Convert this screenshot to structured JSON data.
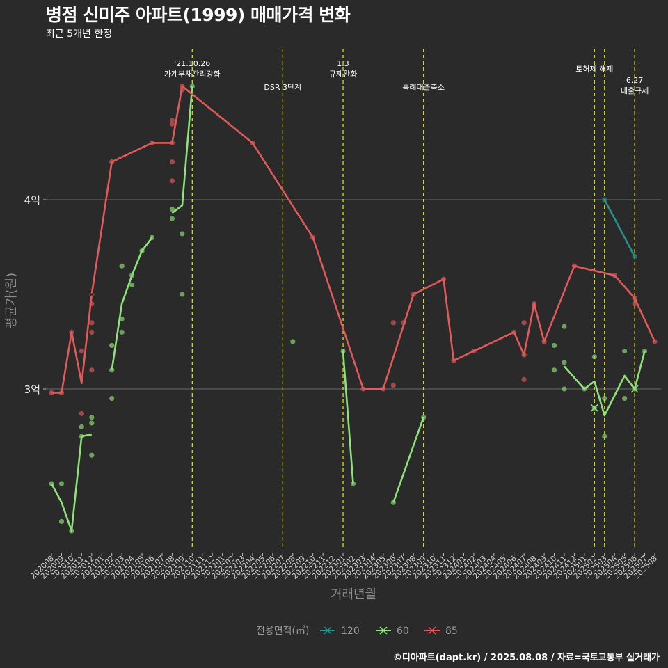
{
  "colors": {
    "background": "#2b2a2b",
    "grid": "#6a6a6a",
    "vline": "#d8e000",
    "s120": "#2a8f8a",
    "s60": "#8fe27a",
    "s85": "#e05a5a"
  },
  "chart_data": {
    "type": "line",
    "title": "병점 신미주 아파트(1999) 매매가격 변화",
    "subtitle": "최근 5개년 한정",
    "caption": "©디아파트(dapt.kr) / 2025.08.08 / 자료=국토교통부 실거래가",
    "xlabel": "거래년월",
    "ylabel": "평균가(원)",
    "ylim": [
      2.2,
      4.8
    ],
    "yticks": [
      {
        "value": 3,
        "label": "3억"
      },
      {
        "value": 4,
        "label": "4억"
      }
    ],
    "months": [
      "202008",
      "202009",
      "202010",
      "202011",
      "202012",
      "202101",
      "202102",
      "202103",
      "202104",
      "202105",
      "202106",
      "202107",
      "202108",
      "202109",
      "202110",
      "202111",
      "202112",
      "202201",
      "202202",
      "202203",
      "202204",
      "202205",
      "202206",
      "202207",
      "202208",
      "202209",
      "202210",
      "202211",
      "202212",
      "202301",
      "202302",
      "202303",
      "202304",
      "202305",
      "202306",
      "202307",
      "202308",
      "202309",
      "202310",
      "202311",
      "202312",
      "202401",
      "202402",
      "202403",
      "202404",
      "202405",
      "202406",
      "202407",
      "202408",
      "202409",
      "202410",
      "202411",
      "202412",
      "202501",
      "202502",
      "202503",
      "202504",
      "202505",
      "202506",
      "202507",
      "202508"
    ],
    "annotations": [
      {
        "month": "202110",
        "lines": [
          "'21.10.26",
          "가계부채관리강화"
        ],
        "row": "high"
      },
      {
        "month": "202207",
        "lines": [
          "DSR 3단계"
        ],
        "row": "low"
      },
      {
        "month": "202301",
        "lines": [
          "1.3",
          "규제완화"
        ],
        "row": "high"
      },
      {
        "month": "202309",
        "lines": [
          "특례대출축소"
        ],
        "row": "low"
      },
      {
        "month": "202502",
        "lines": [
          "토허제 해제"
        ],
        "row": "mid"
      },
      {
        "month": "202503",
        "lines": [],
        "row": "none"
      },
      {
        "month": "202506",
        "lines": [
          "6.27",
          "대출규제"
        ],
        "row": "low2"
      }
    ],
    "legend": {
      "title": "전용면적(㎡)",
      "entries": [
        "120",
        "60",
        "85"
      ]
    },
    "series": [
      {
        "name": "120",
        "color": "#2a8f8a",
        "line": [
          [
            "202503",
            4.0
          ],
          [
            "202506",
            3.7
          ]
        ],
        "points": [
          [
            "202503",
            4.0
          ],
          [
            "202506",
            3.7
          ]
        ]
      },
      {
        "name": "60",
        "color": "#8fe27a",
        "line": [
          [
            [
              "202008",
              2.5
            ],
            [
              "202009",
              2.4
            ],
            [
              "202010",
              2.25
            ],
            [
              "202011",
              2.75
            ],
            [
              "202012",
              2.76
            ]
          ],
          [
            [
              "202102",
              3.1
            ],
            [
              "202103",
              3.45
            ],
            [
              "202104",
              3.6
            ],
            [
              "202105",
              3.73
            ],
            [
              "202106",
              3.8
            ]
          ],
          [
            [
              "202108",
              3.93
            ],
            [
              "202109",
              3.97
            ],
            [
              "202110",
              4.6
            ]
          ],
          [
            [
              "202301",
              3.2
            ],
            [
              "202302",
              2.5
            ]
          ],
          [
            [
              "202306",
              2.4
            ],
            [
              "202309",
              2.85
            ]
          ],
          [
            [
              "202411",
              3.12
            ],
            [
              "202501",
              3.0
            ],
            [
              "202502",
              3.04
            ],
            [
              "202503",
              2.86
            ],
            [
              "202505",
              3.07
            ],
            [
              "202506",
              3.0
            ],
            [
              "202507",
              3.2
            ]
          ]
        ],
        "points": [
          [
            "202008",
            2.5
          ],
          [
            "202009",
            2.5
          ],
          [
            "202009",
            2.3
          ],
          [
            "202010",
            2.25
          ],
          [
            "202011",
            2.75
          ],
          [
            "202011",
            2.8
          ],
          [
            "202012",
            2.82
          ],
          [
            "202012",
            2.85
          ],
          [
            "202012",
            2.65
          ],
          [
            "202102",
            3.1
          ],
          [
            "202102",
            3.23
          ],
          [
            "202102",
            2.95
          ],
          [
            "202103",
            3.37
          ],
          [
            "202103",
            3.3
          ],
          [
            "202103",
            3.65
          ],
          [
            "202104",
            3.6
          ],
          [
            "202104",
            3.55
          ],
          [
            "202105",
            3.73
          ],
          [
            "202106",
            3.8
          ],
          [
            "202108",
            3.95
          ],
          [
            "202108",
            3.9
          ],
          [
            "202109",
            3.82
          ],
          [
            "202109",
            3.5
          ],
          [
            "202110",
            4.6
          ],
          [
            "202208",
            3.25
          ],
          [
            "202301",
            3.2
          ],
          [
            "202302",
            2.5
          ],
          [
            "202306",
            2.4
          ],
          [
            "202309",
            2.85
          ],
          [
            "202410",
            3.23
          ],
          [
            "202410",
            3.1
          ],
          [
            "202411",
            3.33
          ],
          [
            "202411",
            3.14
          ],
          [
            "202411",
            3.0
          ],
          [
            "202501",
            3.0
          ],
          [
            "202502",
            3.17
          ],
          [
            "202502",
            2.9
          ],
          [
            "202503",
            2.95
          ],
          [
            "202503",
            2.75
          ],
          [
            "202505",
            3.2
          ],
          [
            "202505",
            2.95
          ],
          [
            "202506",
            3.0
          ],
          [
            "202507",
            3.2
          ]
        ],
        "crosses": [
          [
            "202502",
            2.9
          ],
          [
            "202506",
            3.0
          ]
        ]
      },
      {
        "name": "85",
        "color": "#e05a5a",
        "line": [
          [
            [
              "202008",
              2.98
            ],
            [
              "202009",
              2.98
            ],
            [
              "202010",
              3.3
            ],
            [
              "202011",
              3.03
            ],
            [
              "202012",
              3.5
            ],
            [
              "202102",
              4.2
            ],
            [
              "202106",
              4.3
            ],
            [
              "202108",
              4.3
            ],
            [
              "202109",
              4.6
            ],
            [
              "202204",
              4.3
            ],
            [
              "202210",
              3.8
            ],
            [
              "202303",
              3.0
            ],
            [
              "202305",
              3.0
            ],
            [
              "202308",
              3.5
            ],
            [
              "202311",
              3.58
            ],
            [
              "202312",
              3.15
            ],
            [
              "202402",
              3.2
            ],
            [
              "202406",
              3.3
            ],
            [
              "202407",
              3.18
            ],
            [
              "202408",
              3.45
            ],
            [
              "202409",
              3.25
            ],
            [
              "202412",
              3.65
            ],
            [
              "202504",
              3.6
            ],
            [
              "202506",
              3.48
            ],
            [
              "202508",
              3.25
            ]
          ]
        ],
        "points": [
          [
            "202008",
            2.98
          ],
          [
            "202009",
            2.98
          ],
          [
            "202010",
            3.3
          ],
          [
            "202011",
            3.2
          ],
          [
            "202011",
            2.87
          ],
          [
            "202012",
            3.5
          ],
          [
            "202012",
            3.45
          ],
          [
            "202012",
            3.35
          ],
          [
            "202012",
            3.3
          ],
          [
            "202012",
            3.1
          ],
          [
            "202102",
            4.2
          ],
          [
            "202106",
            4.3
          ],
          [
            "202108",
            4.3
          ],
          [
            "202108",
            4.4
          ],
          [
            "202108",
            4.42
          ],
          [
            "202108",
            4.2
          ],
          [
            "202108",
            4.1
          ],
          [
            "202109",
            4.6
          ],
          [
            "202109",
            4.58
          ],
          [
            "202204",
            4.3
          ],
          [
            "202210",
            3.8
          ],
          [
            "202303",
            3.0
          ],
          [
            "202305",
            3.0
          ],
          [
            "202306",
            3.35
          ],
          [
            "202306",
            3.02
          ],
          [
            "202307",
            3.35
          ],
          [
            "202308",
            3.5
          ],
          [
            "202311",
            3.58
          ],
          [
            "202312",
            3.15
          ],
          [
            "202402",
            3.2
          ],
          [
            "202406",
            3.3
          ],
          [
            "202407",
            3.18
          ],
          [
            "202407",
            3.35
          ],
          [
            "202407",
            3.05
          ],
          [
            "202408",
            3.45
          ],
          [
            "202408",
            3.44
          ],
          [
            "202409",
            3.25
          ],
          [
            "202412",
            3.65
          ],
          [
            "202504",
            3.6
          ],
          [
            "202506",
            3.48
          ],
          [
            "202506",
            3.45
          ],
          [
            "202508",
            3.25
          ]
        ],
        "crosses": [
          [
            "202012",
            3.5
          ]
        ]
      }
    ]
  }
}
